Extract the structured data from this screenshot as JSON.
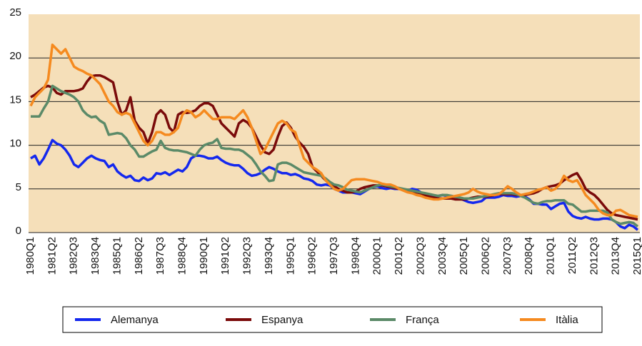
{
  "chart_data": {
    "type": "line",
    "categories": [
      "1980Q1",
      null,
      null,
      null,
      null,
      "1981Q2",
      null,
      null,
      null,
      null,
      "1982Q3",
      null,
      null,
      null,
      null,
      "1983Q4",
      null,
      null,
      null,
      null,
      "1985Q1",
      null,
      null,
      null,
      null,
      "1986Q2",
      null,
      null,
      null,
      null,
      "1987Q3",
      null,
      null,
      null,
      null,
      "1988Q4",
      null,
      null,
      null,
      null,
      "1990Q1",
      null,
      null,
      null,
      null,
      "1991Q2",
      null,
      null,
      null,
      null,
      "1992Q3",
      null,
      null,
      null,
      null,
      "1993Q4",
      null,
      null,
      null,
      null,
      "1995Q1",
      null,
      null,
      null,
      null,
      "1996Q2",
      null,
      null,
      null,
      null,
      "1997Q3",
      null,
      null,
      null,
      null,
      "1998Q4",
      null,
      null,
      null,
      null,
      "2000Q1",
      null,
      null,
      null,
      null,
      "2001Q2",
      null,
      null,
      null,
      null,
      "2002Q3",
      null,
      null,
      null,
      null,
      "2003Q4",
      null,
      null,
      null,
      null,
      "2005Q1",
      null,
      null,
      null,
      null,
      "2006Q2",
      null,
      null,
      null,
      null,
      "2007Q3",
      null,
      null,
      null,
      null,
      "2008Q4",
      null,
      null,
      null,
      null,
      "2010Q1",
      null,
      null,
      null,
      null,
      "2011Q2",
      null,
      null,
      null,
      null,
      "2012Q3",
      null,
      null,
      null,
      null,
      "2013Q4",
      null,
      null,
      null,
      null,
      "2015Q1"
    ],
    "series": [
      {
        "name": "Alemanya",
        "color": "#1428ee",
        "values": [
          8.5,
          8.8,
          7.8,
          8.5,
          9.5,
          10.6,
          10.2,
          10.0,
          9.5,
          8.8,
          7.8,
          7.5,
          8.0,
          8.5,
          8.8,
          8.5,
          8.3,
          8.2,
          7.5,
          7.8,
          7.0,
          6.6,
          6.3,
          6.5,
          6.0,
          5.9,
          6.3,
          6.0,
          6.2,
          6.8,
          6.7,
          6.9,
          6.6,
          6.9,
          7.2,
          7.0,
          7.5,
          8.5,
          8.8,
          8.8,
          8.7,
          8.5,
          8.5,
          8.7,
          8.3,
          8.0,
          7.8,
          7.7,
          7.7,
          7.3,
          6.8,
          6.5,
          6.6,
          6.8,
          7.2,
          7.5,
          7.3,
          7.0,
          6.8,
          6.8,
          6.6,
          6.7,
          6.5,
          6.2,
          6.1,
          5.9,
          5.5,
          5.4,
          5.5,
          5.4,
          5.0,
          4.8,
          4.6,
          4.6,
          4.6,
          4.5,
          4.4,
          4.7,
          5.0,
          5.2,
          5.3,
          5.1,
          5.0,
          5.1,
          5.0,
          5.0,
          4.9,
          4.8,
          5.0,
          4.9,
          4.6,
          4.3,
          4.2,
          4.1,
          4.2,
          4.3,
          4.2,
          4.2,
          4.1,
          3.9,
          3.7,
          3.5,
          3.4,
          3.5,
          3.6,
          4.0,
          4.0,
          4.0,
          4.1,
          4.3,
          4.2,
          4.2,
          4.1,
          4.2,
          4.1,
          3.8,
          3.3,
          3.3,
          3.2,
          3.2,
          2.7,
          3.0,
          3.3,
          3.4,
          2.4,
          1.9,
          1.7,
          1.6,
          1.8,
          1.6,
          1.5,
          1.5,
          1.6,
          1.6,
          1.5,
          1.2,
          0.7,
          0.5,
          0.9,
          0.7,
          0.3
        ]
      },
      {
        "name": "Espanya",
        "color": "#7a0a0a",
        "values": [
          15.5,
          15.8,
          16.2,
          16.6,
          16.8,
          16.6,
          16.0,
          15.8,
          16.2,
          16.2,
          16.2,
          16.3,
          16.5,
          17.3,
          17.9,
          18.0,
          18.0,
          17.8,
          17.5,
          17.2,
          15.0,
          13.5,
          14.0,
          15.5,
          12.8,
          12.0,
          11.5,
          10.2,
          11.5,
          13.5,
          14.0,
          13.5,
          12.0,
          11.5,
          13.5,
          13.8,
          13.7,
          13.8,
          14.0,
          14.5,
          14.8,
          14.8,
          14.5,
          13.5,
          12.5,
          12.0,
          11.5,
          11.0,
          12.5,
          12.9,
          12.6,
          12.0,
          11.0,
          10.0,
          9.2,
          9.0,
          9.5,
          11.0,
          12.2,
          12.6,
          12.0,
          11.0,
          10.3,
          9.8,
          9.0,
          7.5,
          7.0,
          6.5,
          6.0,
          5.5,
          5.3,
          5.0,
          4.8,
          4.6,
          4.6,
          4.7,
          5.0,
          5.2,
          5.3,
          5.4,
          5.4,
          5.4,
          5.3,
          5.2,
          5.1,
          5.0,
          4.9,
          4.8,
          4.7,
          4.6,
          4.5,
          4.3,
          4.1,
          4.0,
          3.9,
          3.9,
          3.9,
          3.9,
          3.8,
          3.8,
          3.8,
          3.9,
          4.0,
          4.1,
          4.1,
          4.1,
          4.2,
          4.3,
          4.4,
          4.4,
          4.4,
          4.4,
          4.3,
          4.3,
          4.3,
          4.4,
          4.5,
          4.7,
          5.0,
          5.2,
          5.3,
          5.4,
          5.6,
          6.0,
          6.3,
          6.6,
          6.8,
          6.0,
          5.0,
          4.6,
          4.3,
          3.8,
          3.2,
          2.6,
          2.2,
          2.0,
          1.9,
          1.8,
          1.7,
          1.6,
          1.5
        ]
      },
      {
        "name": "França",
        "color": "#5b8a68",
        "values": [
          13.3,
          13.3,
          13.3,
          14.2,
          15.0,
          16.8,
          16.5,
          16.2,
          16.0,
          15.8,
          15.5,
          15.0,
          14.0,
          13.5,
          13.2,
          13.3,
          12.8,
          12.5,
          11.2,
          11.3,
          11.4,
          11.3,
          10.8,
          10.0,
          9.5,
          8.7,
          8.7,
          9.0,
          9.3,
          9.5,
          10.5,
          9.7,
          9.5,
          9.4,
          9.4,
          9.3,
          9.2,
          9.0,
          8.8,
          9.5,
          10.0,
          10.2,
          10.3,
          10.7,
          9.7,
          9.6,
          9.6,
          9.5,
          9.5,
          9.3,
          8.9,
          8.5,
          7.8,
          7.0,
          6.5,
          5.9,
          6.0,
          7.8,
          8.0,
          8.0,
          7.8,
          7.5,
          7.2,
          6.9,
          6.8,
          6.7,
          6.6,
          6.5,
          6.2,
          5.8,
          5.5,
          5.4,
          5.2,
          4.9,
          4.8,
          4.7,
          4.6,
          4.8,
          5.0,
          5.2,
          5.4,
          5.5,
          5.4,
          5.3,
          5.2,
          5.1,
          5.0,
          4.9,
          4.8,
          4.7,
          4.6,
          4.5,
          4.4,
          4.3,
          4.2,
          4.3,
          4.3,
          4.2,
          4.1,
          4.0,
          3.9,
          3.9,
          3.9,
          4.0,
          4.1,
          4.2,
          4.3,
          4.4,
          4.5,
          4.5,
          4.5,
          4.5,
          4.4,
          4.2,
          4.0,
          3.7,
          3.4,
          3.3,
          3.5,
          3.6,
          3.6,
          3.7,
          3.7,
          3.7,
          3.3,
          3.2,
          2.8,
          2.4,
          2.4,
          2.5,
          2.5,
          2.5,
          2.5,
          2.3,
          1.5,
          1.2,
          1.0,
          1.1,
          1.2,
          1.1,
          0.7
        ]
      },
      {
        "name": "Itàlia",
        "color": "#f58a1f",
        "values": [
          14.5,
          15.5,
          16.0,
          16.5,
          17.5,
          21.5,
          21.0,
          20.5,
          21.0,
          20.0,
          19.0,
          18.7,
          18.5,
          18.2,
          18.0,
          17.5,
          17.0,
          16.0,
          15.0,
          14.5,
          13.8,
          13.5,
          13.7,
          13.5,
          12.5,
          11.5,
          10.5,
          10.0,
          10.5,
          11.5,
          11.5,
          11.2,
          11.2,
          11.5,
          12.0,
          13.5,
          14.0,
          13.8,
          13.2,
          13.5,
          14.0,
          13.5,
          13.0,
          13.0,
          13.2,
          13.2,
          13.2,
          13.0,
          13.5,
          14.0,
          13.2,
          12.0,
          10.5,
          9.0,
          9.5,
          10.5,
          11.5,
          12.5,
          12.8,
          12.5,
          11.8,
          11.5,
          10.0,
          8.5,
          8.0,
          7.5,
          7.2,
          6.8,
          6.0,
          5.5,
          5.0,
          4.8,
          5.0,
          5.5,
          6.0,
          6.1,
          6.1,
          6.1,
          6.0,
          5.9,
          5.8,
          5.6,
          5.5,
          5.5,
          5.3,
          5.0,
          4.8,
          4.6,
          4.5,
          4.3,
          4.2,
          4.0,
          3.9,
          3.8,
          3.8,
          3.9,
          4.0,
          4.1,
          4.2,
          4.3,
          4.4,
          4.6,
          5.0,
          4.7,
          4.5,
          4.4,
          4.3,
          4.3,
          4.4,
          4.8,
          5.3,
          5.0,
          4.6,
          4.3,
          4.4,
          4.5,
          4.7,
          4.9,
          5.0,
          5.2,
          4.8,
          5.0,
          5.5,
          6.5,
          6.0,
          5.8,
          6.0,
          5.2,
          4.3,
          3.8,
          3.3,
          2.6,
          2.2,
          2.0,
          2.0,
          2.5,
          2.6,
          2.3,
          2.0,
          1.9,
          1.8
        ]
      }
    ],
    "ylim": [
      0,
      25
    ],
    "yticks": [
      0,
      5,
      10,
      15,
      20,
      25
    ],
    "grid": true
  }
}
